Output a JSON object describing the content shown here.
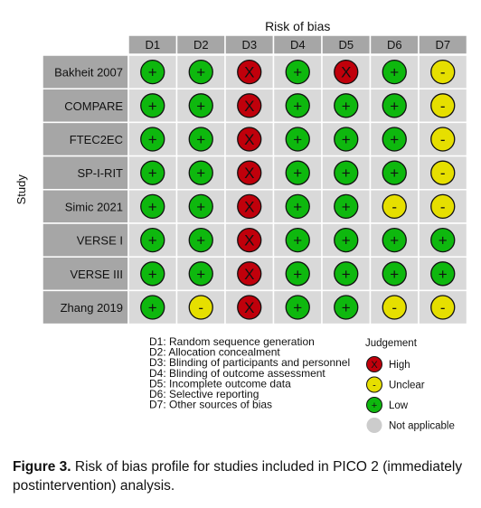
{
  "chart_data": {
    "type": "table",
    "title": "Risk of bias",
    "ylabel": "Study",
    "domains": [
      "D1",
      "D2",
      "D3",
      "D4",
      "D5",
      "D6",
      "D7"
    ],
    "studies": [
      "Bakheit 2007",
      "COMPARE",
      "FTEC2EC",
      "SP-I-RIT",
      "Simic 2021",
      "VERSE I",
      "VERSE III",
      "Zhang 2019"
    ],
    "judgements": [
      [
        "low",
        "low",
        "high",
        "low",
        "high",
        "low",
        "unclear"
      ],
      [
        "low",
        "low",
        "high",
        "low",
        "low",
        "low",
        "unclear"
      ],
      [
        "low",
        "low",
        "high",
        "low",
        "low",
        "low",
        "unclear"
      ],
      [
        "low",
        "low",
        "high",
        "low",
        "low",
        "low",
        "unclear"
      ],
      [
        "low",
        "low",
        "high",
        "low",
        "low",
        "unclear",
        "unclear"
      ],
      [
        "low",
        "low",
        "high",
        "low",
        "low",
        "low",
        "low"
      ],
      [
        "low",
        "low",
        "high",
        "low",
        "low",
        "low",
        "low"
      ],
      [
        "low",
        "unclear",
        "high",
        "low",
        "low",
        "unclear",
        "unclear"
      ]
    ],
    "domain_descriptions": [
      "D1: Random sequence generation",
      "D2: Allocation concealment",
      "D3: Blinding of participants and personnel",
      "D4: Blinding of outcome assessment",
      "D5: Incomplete outcome data",
      "D6: Selective reporting",
      "D7: Other sources of bias"
    ],
    "legend": {
      "title": "Judgement",
      "items": [
        {
          "key": "high",
          "label": "High",
          "symbol": "X",
          "color": "#c0000b"
        },
        {
          "key": "unclear",
          "label": "Unclear",
          "symbol": "-",
          "color": "#e6df00"
        },
        {
          "key": "low",
          "label": "Low",
          "symbol": "+",
          "color": "#0eb80e"
        },
        {
          "key": "na",
          "label": "Not applicable",
          "symbol": "",
          "color": "#cccccc"
        }
      ]
    },
    "colors": {
      "header_fill": "#a6a6a6",
      "cell_fill": "#d9d9d9",
      "study_fill": "#a6a6a6",
      "border": "#ffffff"
    }
  },
  "caption": {
    "label": "Figure 3.",
    "text": "Risk of bias profile for studies included in PICO 2 (immediately postintervention) analysis."
  }
}
